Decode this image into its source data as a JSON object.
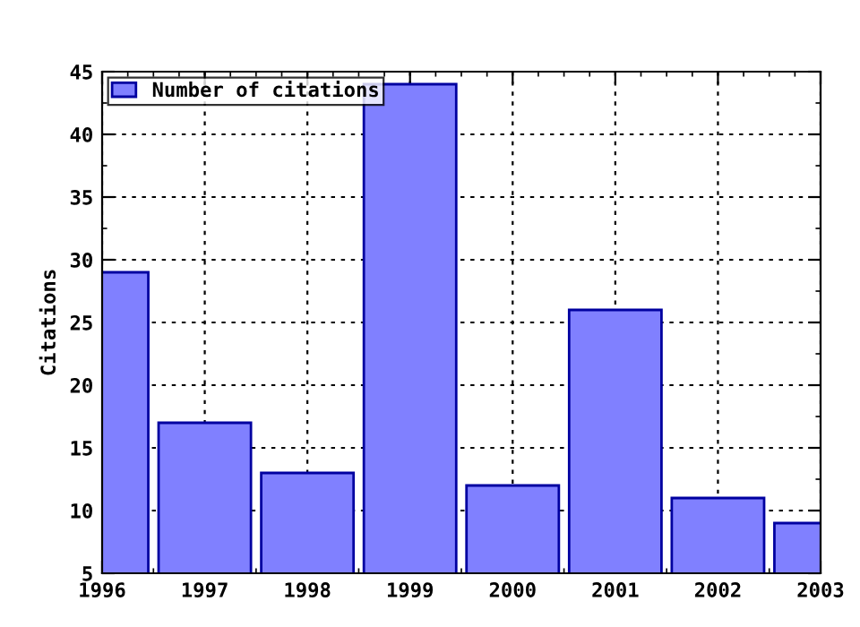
{
  "chart_data": {
    "type": "bar",
    "ylabel": "Citations",
    "x": [
      1996,
      1997,
      1998,
      1999,
      2000,
      2001,
      2002,
      2003
    ],
    "series": [
      {
        "name": "Number of citations",
        "color": "#8080ff",
        "values": [
          29,
          17,
          13,
          44,
          12,
          26,
          11,
          9
        ]
      }
    ],
    "xlim": [
      1996,
      2003
    ],
    "xticks": [
      1996,
      1997,
      1998,
      1999,
      2000,
      2001,
      2002,
      2003
    ],
    "ylim": [
      5,
      45
    ],
    "yticks": [
      5,
      10,
      15,
      20,
      25,
      30,
      35,
      40,
      45
    ],
    "grid": true,
    "legend": "top left"
  }
}
